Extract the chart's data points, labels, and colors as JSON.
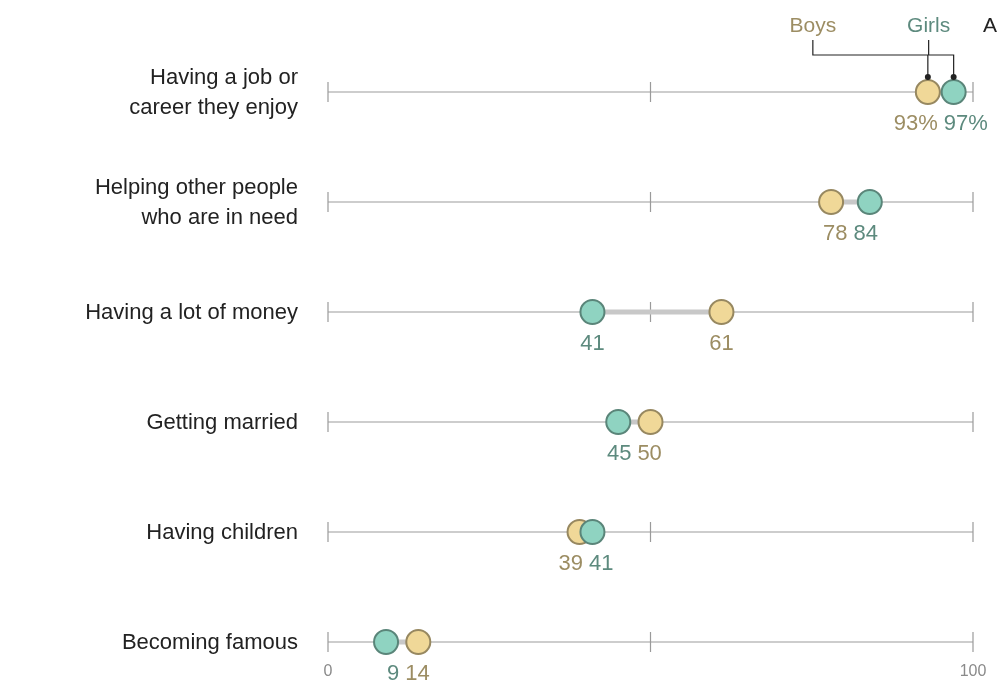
{
  "chart_data": {
    "type": "scatter",
    "orientation": "horizontal",
    "categories": [
      "Having a job or\ncareer they enjoy",
      "Helping other people\nwho are in need",
      "Having a lot of money",
      "Getting married",
      "Having children",
      "Becoming famous"
    ],
    "series": [
      {
        "name": "Boys",
        "color": "#f0d898",
        "values": [
          93,
          78,
          61,
          50,
          39,
          14
        ],
        "value_labels": [
          "93%",
          "78",
          "61",
          "50",
          "39",
          "14"
        ]
      },
      {
        "name": "Girls",
        "color": "#8fd3c1",
        "values": [
          97,
          84,
          41,
          45,
          41,
          9
        ],
        "value_labels": [
          "97%",
          "84",
          "41",
          "45",
          "41",
          "9"
        ]
      }
    ],
    "xlim": [
      0,
      100
    ],
    "xticks": [
      0,
      100
    ],
    "legend": "top right",
    "marker": "circle",
    "annotations": [
      "A"
    ]
  }
}
